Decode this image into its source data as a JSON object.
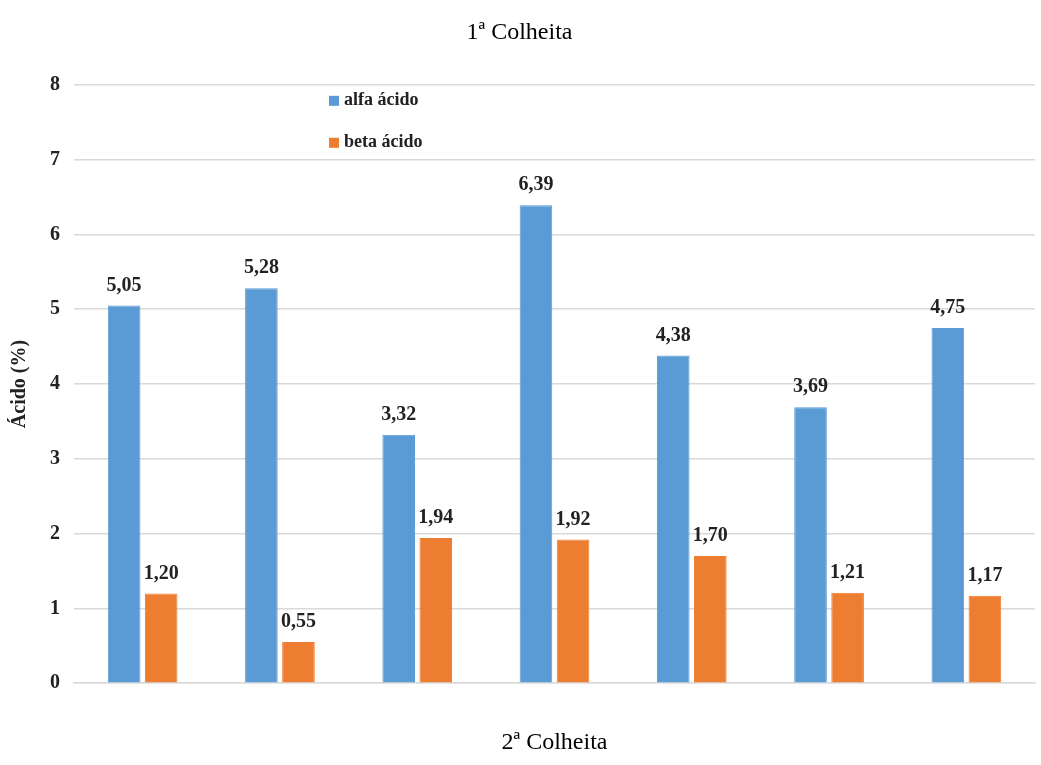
{
  "chart_data": {
    "type": "bar",
    "title": "1ª Colheita",
    "xlabel": "2ª Colheita",
    "ylabel": "Ácido (%)",
    "categories": [
      null,
      null,
      null,
      null,
      null,
      null,
      null
    ],
    "series": [
      {
        "name": "alfa ácido",
        "color": "#5b9bd5",
        "values": [
          5.05,
          5.28,
          3.32,
          6.39,
          4.38,
          3.69,
          4.75
        ],
        "value_labels": [
          "5,05",
          "5,28",
          "3,32",
          "6,39",
          "4,38",
          "3,69",
          "4,75"
        ]
      },
      {
        "name": "beta ácido",
        "color": "#ed7d31",
        "values": [
          1.2,
          0.55,
          1.94,
          1.92,
          1.7,
          1.21,
          1.17
        ],
        "value_labels": [
          "1,20",
          "0,55",
          "1,94",
          "1,92",
          "1,70",
          "1,21",
          "1,17"
        ]
      }
    ],
    "ylim": [
      0,
      8
    ],
    "yticks": [
      0,
      1,
      2,
      3,
      4,
      5,
      6,
      7,
      8
    ],
    "grid": "y",
    "legend": "top left",
    "tick_labels": "y"
  }
}
